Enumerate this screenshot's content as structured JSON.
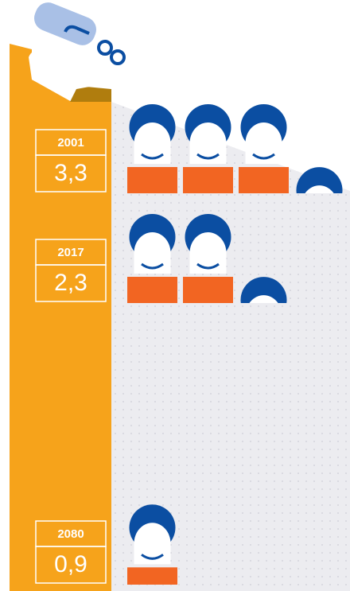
{
  "chart_data": {
    "type": "pictogram",
    "categories": [
      "2001",
      "2017",
      "2080"
    ],
    "values": [
      3.3,
      2.3,
      0.9
    ],
    "value_labels": [
      "3,3",
      "2,3",
      "0,9"
    ],
    "hair_color": "#0b4ea2",
    "shirt_color": "#f26522",
    "column_color": "#f6a31b"
  }
}
